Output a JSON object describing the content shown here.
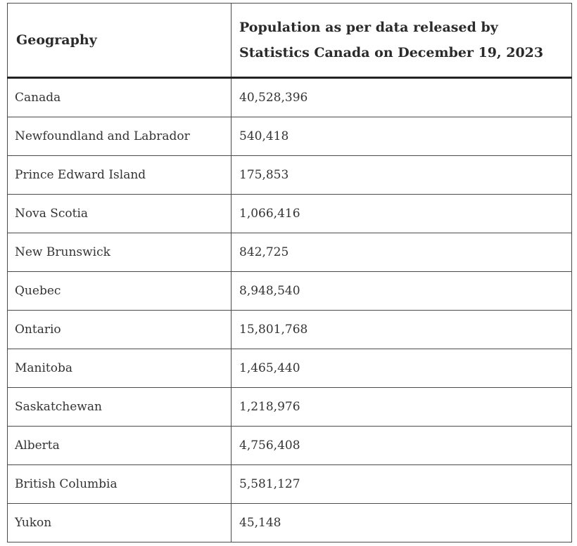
{
  "table": {
    "headers": {
      "geography": "Geography",
      "population": "Population as per data released by Statistics Canada on December 19, 2023"
    },
    "rows": [
      {
        "geography": "Canada",
        "population": "40,528,396"
      },
      {
        "geography": "Newfoundland and Labrador",
        "population": "540,418"
      },
      {
        "geography": "Prince Edward Island",
        "population": "175,853"
      },
      {
        "geography": "Nova Scotia",
        "population": "1,066,416"
      },
      {
        "geography": "New Brunswick",
        "population": "842,725"
      },
      {
        "geography": "Quebec",
        "population": "8,948,540"
      },
      {
        "geography": "Ontario",
        "population": "15,801,768"
      },
      {
        "geography": "Manitoba",
        "population": "1,465,440"
      },
      {
        "geography": "Saskatchewan",
        "population": "1,218,976"
      },
      {
        "geography": "Alberta",
        "population": "4,756,408"
      },
      {
        "geography": "British Columbia",
        "population": "5,581,127"
      },
      {
        "geography": "Yukon",
        "population": "45,148"
      }
    ]
  }
}
